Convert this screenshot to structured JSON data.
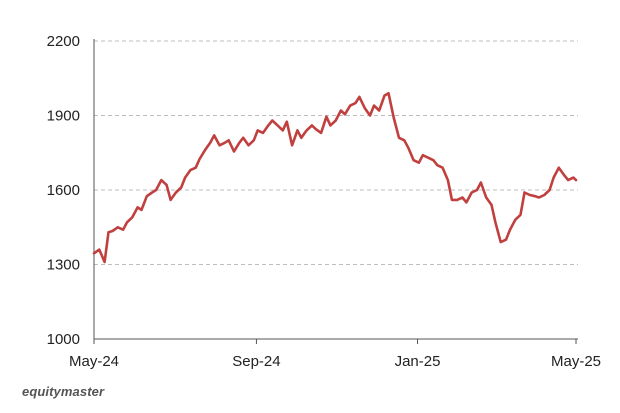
{
  "brand": "equitymaster",
  "chart_data": {
    "type": "line",
    "title": "",
    "xlabel": "",
    "ylabel": "",
    "x_tick_labels": [
      "May-24",
      "Sep-24",
      "Jan-25",
      "May-25"
    ],
    "x_ticks_months": [
      "2024-05",
      "2024-09",
      "2025-01",
      "2025-05"
    ],
    "y_ticks": [
      1000,
      1300,
      1600,
      1900,
      2200
    ],
    "ylim": [
      1000,
      2200
    ],
    "xlim": [
      "2024-05-01",
      "2025-05-01"
    ],
    "grid": "horizontal dashed",
    "colors": {
      "line": "#c0403f",
      "grid": "#bdbdbd",
      "axis": "#555555"
    },
    "series": [
      {
        "name": "",
        "x": [
          "2024-05-01",
          "2024-05-05",
          "2024-05-09",
          "2024-05-12",
          "2024-05-15",
          "2024-05-19",
          "2024-05-23",
          "2024-05-26",
          "2024-05-30",
          "2024-06-03",
          "2024-06-06",
          "2024-06-10",
          "2024-06-14",
          "2024-06-17",
          "2024-06-21",
          "2024-06-25",
          "2024-06-28",
          "2024-07-02",
          "2024-07-06",
          "2024-07-09",
          "2024-07-13",
          "2024-07-17",
          "2024-07-20",
          "2024-07-24",
          "2024-07-28",
          "2024-07-31",
          "2024-08-04",
          "2024-08-08",
          "2024-08-11",
          "2024-08-15",
          "2024-08-19",
          "2024-08-22",
          "2024-08-26",
          "2024-08-30",
          "2024-09-02",
          "2024-09-06",
          "2024-09-10",
          "2024-09-13",
          "2024-09-17",
          "2024-09-21",
          "2024-09-24",
          "2024-09-28",
          "2024-10-02",
          "2024-10-05",
          "2024-10-09",
          "2024-10-13",
          "2024-10-16",
          "2024-10-20",
          "2024-10-24",
          "2024-10-27",
          "2024-10-31",
          "2024-11-04",
          "2024-11-07",
          "2024-11-11",
          "2024-11-15",
          "2024-11-18",
          "2024-11-22",
          "2024-11-26",
          "2024-11-29",
          "2024-12-03",
          "2024-12-07",
          "2024-12-10",
          "2024-12-14",
          "2024-12-18",
          "2024-12-22",
          "2024-12-25",
          "2024-12-29",
          "2025-01-02",
          "2025-01-05",
          "2025-01-09",
          "2025-01-13",
          "2025-01-16",
          "2025-01-20",
          "2025-01-24",
          "2025-01-27",
          "2025-01-31",
          "2025-02-04",
          "2025-02-07",
          "2025-02-11",
          "2025-02-15",
          "2025-02-18",
          "2025-02-22",
          "2025-02-26",
          "2025-03-01",
          "2025-03-05",
          "2025-03-09",
          "2025-03-12",
          "2025-03-16",
          "2025-03-20",
          "2025-03-23",
          "2025-03-27",
          "2025-03-31",
          "2025-04-03",
          "2025-04-07",
          "2025-04-11",
          "2025-04-14",
          "2025-04-18",
          "2025-04-22",
          "2025-04-25",
          "2025-04-29",
          "2025-05-01"
        ],
        "values": [
          1345,
          1360,
          1310,
          1430,
          1435,
          1450,
          1440,
          1470,
          1490,
          1530,
          1520,
          1575,
          1590,
          1600,
          1640,
          1620,
          1560,
          1590,
          1610,
          1650,
          1680,
          1690,
          1725,
          1760,
          1790,
          1820,
          1780,
          1790,
          1800,
          1755,
          1790,
          1810,
          1780,
          1800,
          1840,
          1830,
          1860,
          1880,
          1860,
          1840,
          1875,
          1780,
          1840,
          1810,
          1840,
          1860,
          1845,
          1830,
          1895,
          1860,
          1880,
          1920,
          1905,
          1940,
          1950,
          1975,
          1930,
          1900,
          1940,
          1920,
          1980,
          1990,
          1890,
          1810,
          1800,
          1770,
          1720,
          1710,
          1740,
          1730,
          1720,
          1700,
          1690,
          1640,
          1560,
          1560,
          1570,
          1550,
          1590,
          1600,
          1630,
          1570,
          1540,
          1470,
          1390,
          1400,
          1440,
          1480,
          1500,
          1590,
          1580,
          1575,
          1570,
          1580,
          1600,
          1650,
          1690,
          1660,
          1640,
          1650,
          1640
        ]
      }
    ]
  }
}
